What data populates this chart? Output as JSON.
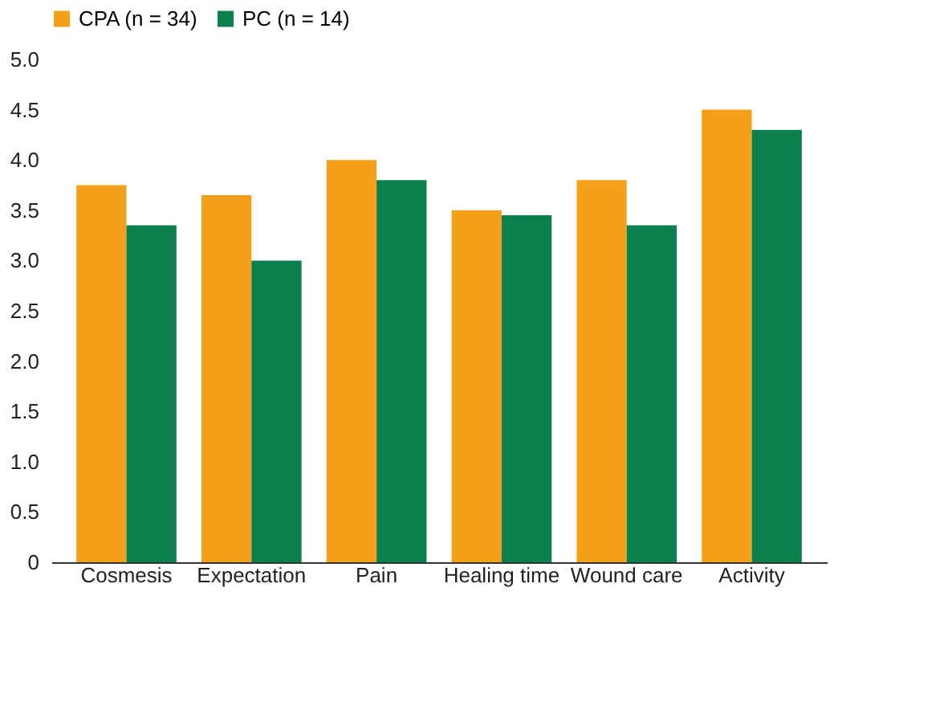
{
  "chart_data": {
    "type": "bar",
    "categories": [
      "Cosmesis",
      "Expectation",
      "Pain",
      "Healing time",
      "Wound care",
      "Activity"
    ],
    "series": [
      {
        "name": "CPA (n = 34)",
        "color": "#f5a01a",
        "values": [
          3.75,
          3.65,
          4.0,
          3.5,
          3.8,
          4.5
        ]
      },
      {
        "name": "PC (n = 14)",
        "color": "#0b7f4c",
        "values": [
          3.35,
          3.0,
          3.8,
          3.45,
          3.35,
          4.3
        ]
      }
    ],
    "ylim": [
      0,
      5
    ],
    "yticks": [
      0,
      {
        "value": 0.5,
        "label": "0.5"
      },
      {
        "value": 1,
        "label": "1.0"
      },
      {
        "value": 1.5,
        "label": "1.5"
      },
      {
        "value": 2,
        "label": "2.0"
      },
      {
        "value": 2.5,
        "label": "2.5"
      },
      {
        "value": 3,
        "label": "3.0"
      },
      {
        "value": 3.5,
        "label": "3.5"
      },
      {
        "value": 4,
        "label": "4.0"
      },
      {
        "value": 4.5,
        "label": "4.5"
      },
      {
        "value": 5,
        "label": "5.0"
      }
    ],
    "grid": false,
    "legend": "top"
  }
}
